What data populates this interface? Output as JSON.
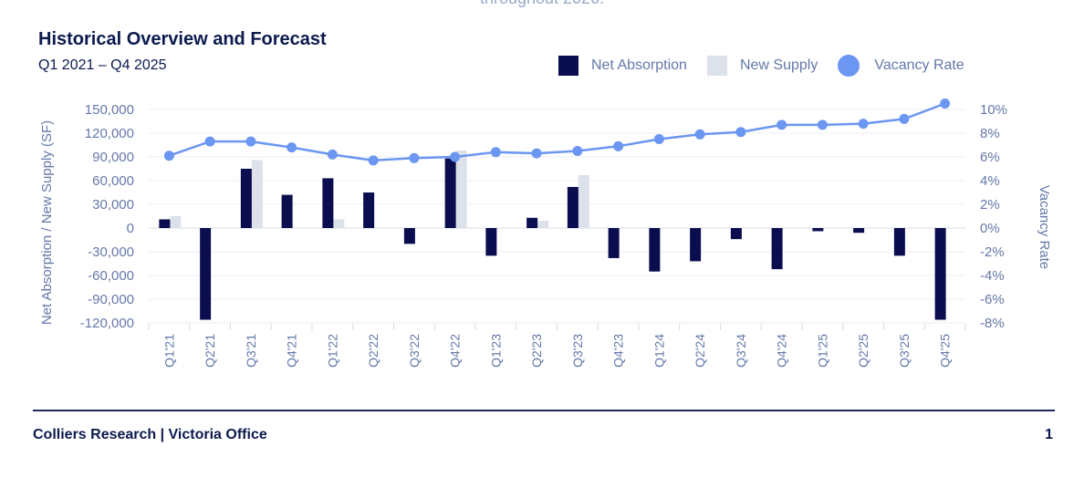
{
  "header": {
    "cut_text": "throughout 2026."
  },
  "chart_data": {
    "type": "bar+line",
    "title": "Historical Overview and Forecast",
    "subtitle": "Q1 2021 – Q4 2025",
    "ylabel_left": "Net Absorption / New Supply (SF)",
    "ylabel_right": "Vacancy Rate",
    "ylim_left": [
      -120000,
      150000
    ],
    "yticks_left": [
      "150,000",
      "120,000",
      "90,000",
      "60,000",
      "30,000",
      "0",
      "-30,000",
      "-60,000",
      "-90,000",
      "-120,000"
    ],
    "ylim_right": [
      -8,
      10
    ],
    "yticks_right": [
      "10%",
      "8%",
      "6%",
      "4%",
      "2%",
      "0%",
      "-2%",
      "-4%",
      "-6%",
      "-8%"
    ],
    "categories": [
      "Q1'21",
      "Q2'21",
      "Q3'21",
      "Q4'21",
      "Q1'22",
      "Q2'22",
      "Q3'22",
      "Q4'22",
      "Q1'23",
      "Q2'23",
      "Q3'23",
      "Q4'23",
      "Q1'24",
      "Q2'24",
      "Q3'24",
      "Q4'24",
      "Q1'25",
      "Q2'25",
      "Q3'25",
      "Q4'25"
    ],
    "series": [
      {
        "name": "Net Absorption",
        "type": "bar",
        "color": "#0a0e4f",
        "values": [
          11000,
          -116000,
          75000,
          42000,
          63000,
          45000,
          -20000,
          88000,
          -35000,
          13000,
          52000,
          -38000,
          -55000,
          -42000,
          -14000,
          -52000,
          -4000,
          -6000,
          -35000,
          -116000
        ]
      },
      {
        "name": "New Supply",
        "type": "bar",
        "color": "#dde1ea",
        "values": [
          15000,
          0,
          86000,
          0,
          11000,
          0,
          0,
          98000,
          0,
          9000,
          67000,
          0,
          0,
          0,
          0,
          0,
          0,
          0,
          0,
          0
        ]
      },
      {
        "name": "Vacancy Rate",
        "type": "line",
        "color": "#6b96f1",
        "values": [
          6.1,
          7.3,
          7.3,
          6.8,
          6.2,
          5.7,
          5.9,
          6.0,
          6.4,
          6.3,
          6.5,
          6.9,
          7.5,
          7.9,
          8.1,
          8.7,
          8.7,
          8.8,
          9.2,
          10.5
        ]
      }
    ],
    "legend": [
      "Net Absorption",
      "New Supply",
      "Vacancy Rate"
    ],
    "legend_position": "top-right"
  },
  "footer": {
    "left": "Colliers Research | Victoria Office",
    "page_number": "1"
  }
}
